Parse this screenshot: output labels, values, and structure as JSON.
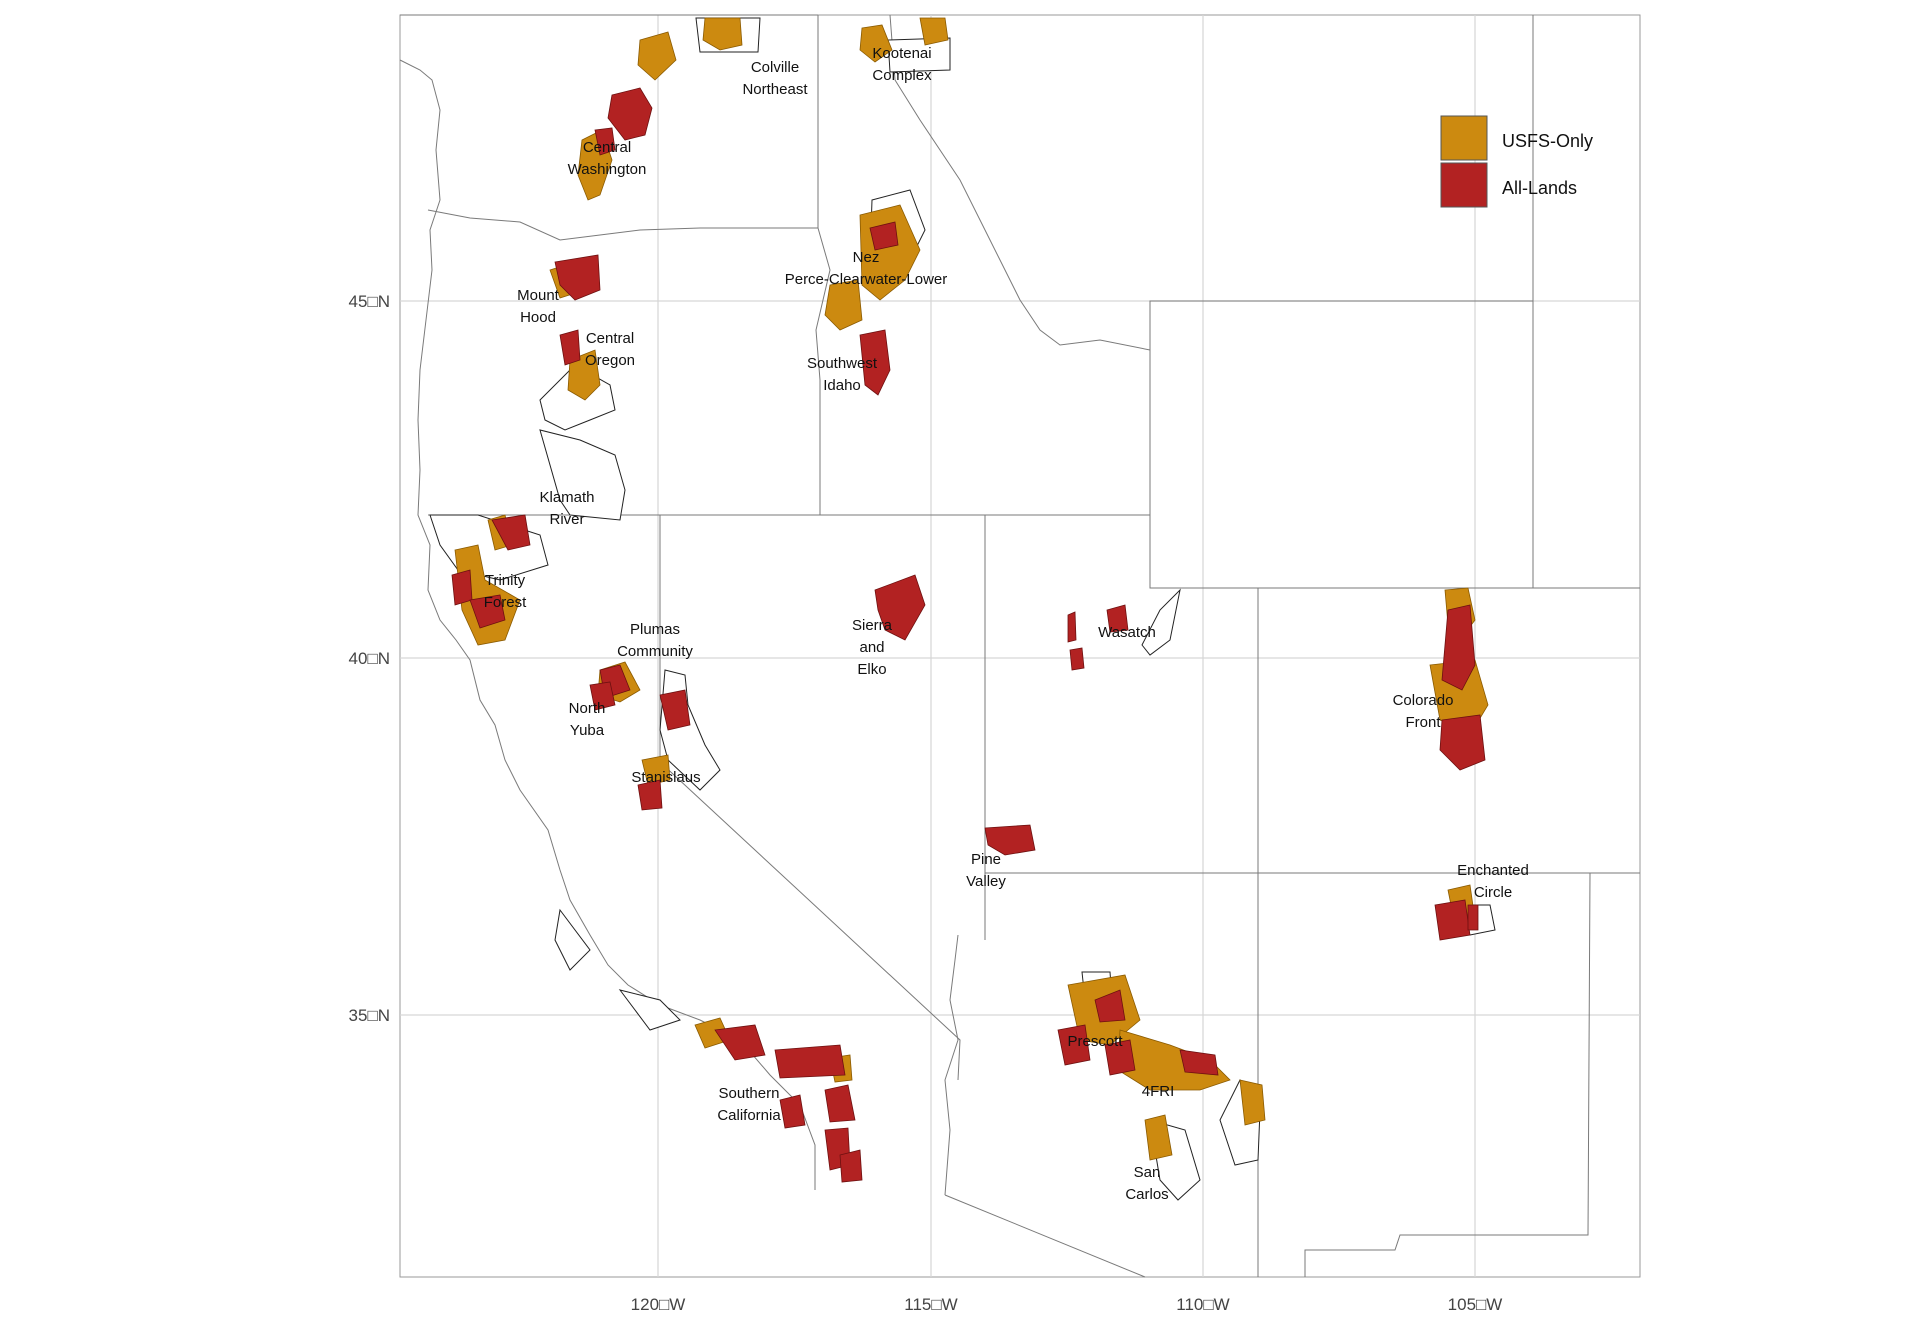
{
  "colors": {
    "usfs_only": "#CC8A10",
    "all_lands": "#B22222",
    "grid": "#d9d9d9",
    "boundary": "#777777",
    "frame": "#888888"
  },
  "axes": {
    "x_ticks": [
      "120□W",
      "115□W",
      "110□W",
      "105□W"
    ],
    "y_ticks": [
      "45□N",
      "40□N",
      "35□N"
    ]
  },
  "legend": {
    "placement": "top-right",
    "items": [
      {
        "label": "USFS-Only",
        "color": "#CC8A10"
      },
      {
        "label": "All-Lands",
        "color": "#B22222"
      }
    ]
  },
  "landscapes": [
    {
      "line1": "Colville",
      "line2": "Northeast"
    },
    {
      "line1": "Kootenai",
      "line2": "Complex"
    },
    {
      "line1": "Central",
      "line2": "Washington"
    },
    {
      "line1": "Nez",
      "line2": "Perce-Clearwater-Lower"
    },
    {
      "line1": "Mount",
      "line2": "Hood"
    },
    {
      "line1": "Central",
      "line2": "Oregon"
    },
    {
      "line1": "Southwest",
      "line2": "Idaho"
    },
    {
      "line1": "Klamath",
      "line2": "River"
    },
    {
      "line1": "Trinity",
      "line2": "Forest"
    },
    {
      "line1": "Plumas",
      "line2": "Community"
    },
    {
      "line1": "Sierra",
      "line2": "and",
      "line3": "Elko"
    },
    {
      "line1": "Wasatch"
    },
    {
      "line1": "North",
      "line2": "Yuba"
    },
    {
      "line1": "Stanislaus"
    },
    {
      "line1": "Colorado",
      "line2": "Front"
    },
    {
      "line1": "Pine",
      "line2": "Valley"
    },
    {
      "line1": "Enchanted",
      "line2": "Circle"
    },
    {
      "line1": "Prescott"
    },
    {
      "line1": "4FRI"
    },
    {
      "line1": "San",
      "line2": "Carlos"
    },
    {
      "line1": "Southern",
      "line2": "California"
    }
  ]
}
